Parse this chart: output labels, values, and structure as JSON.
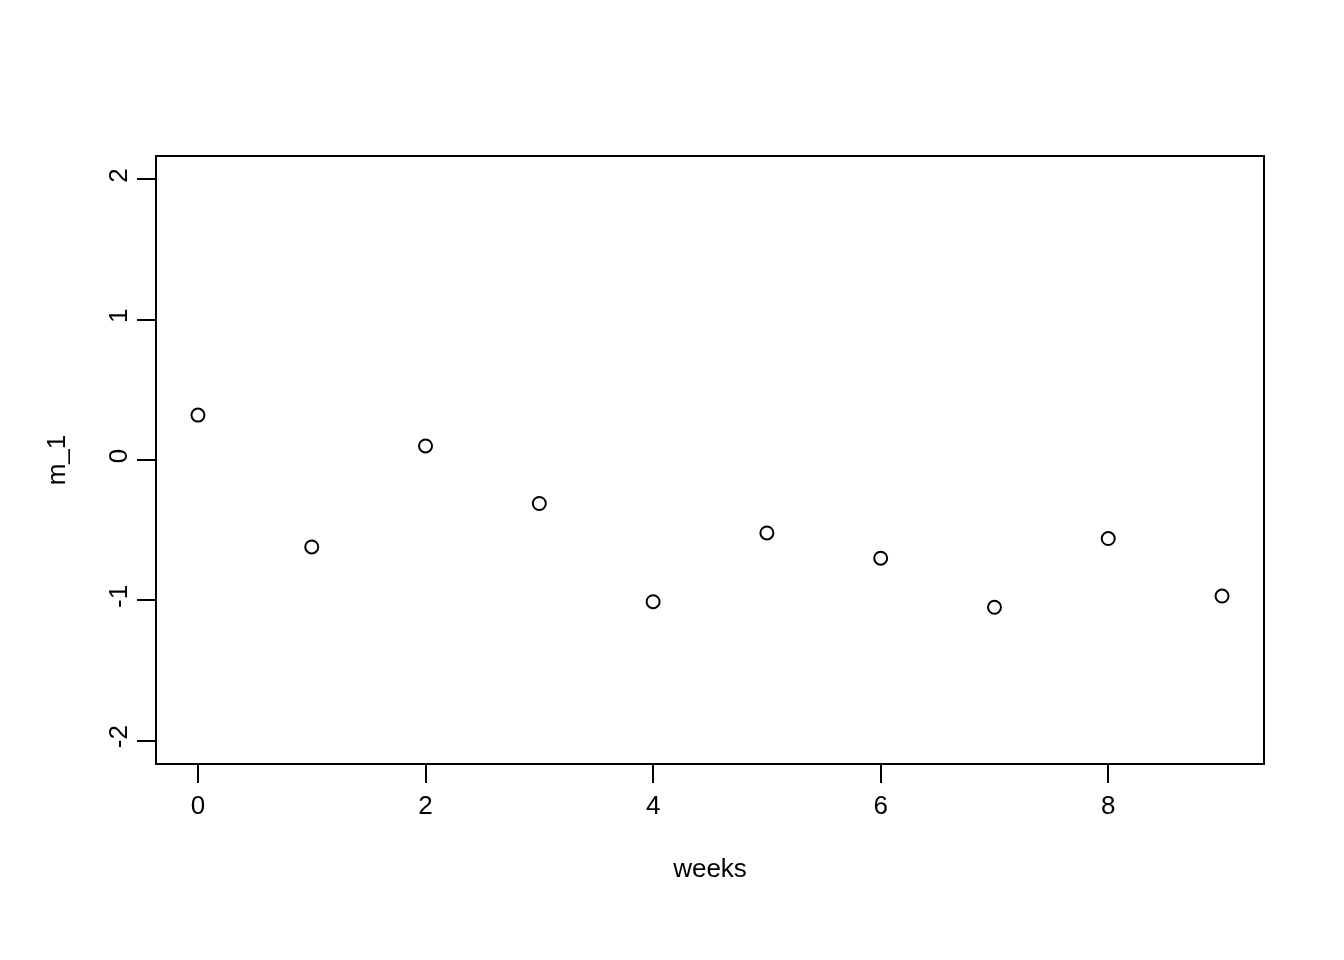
{
  "chart_data": {
    "type": "scatter",
    "xlabel": "weeks",
    "ylabel": "m_1",
    "x": [
      0,
      1,
      2,
      3,
      4,
      5,
      6,
      7,
      8,
      9
    ],
    "values": [
      0.32,
      -0.62,
      0.1,
      -0.31,
      -1.01,
      -0.52,
      -0.7,
      -1.05,
      -0.56,
      -0.97
    ],
    "color": "#000000",
    "marker": "circle",
    "grid": false,
    "legend": false,
    "xlim": [
      -0.36,
      9.36
    ],
    "xticks": [
      0,
      2,
      4,
      6,
      8
    ],
    "ylim": [
      -2.16,
      2.16
    ],
    "yticks": [
      -2,
      -1,
      0,
      1,
      2
    ]
  }
}
